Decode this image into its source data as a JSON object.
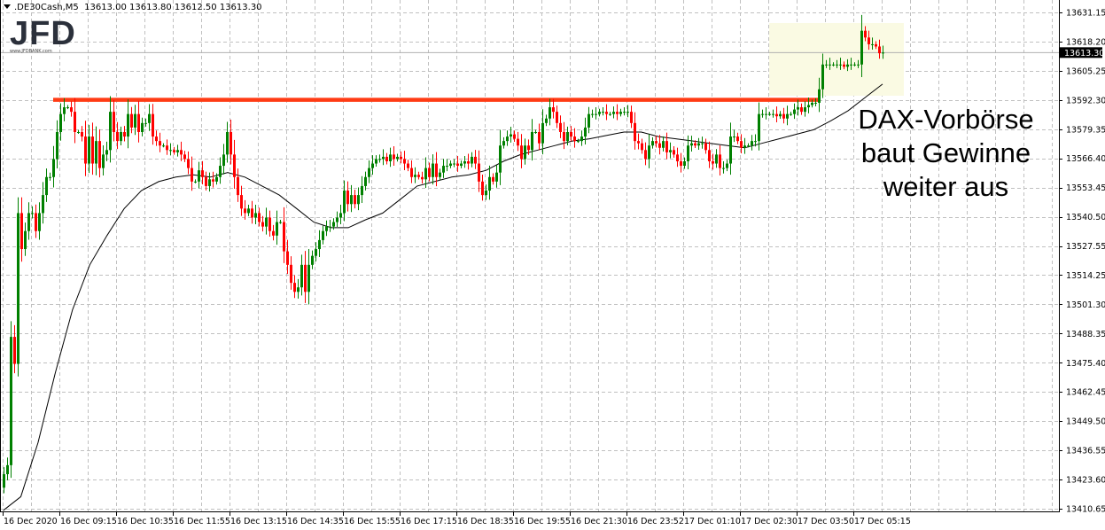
{
  "header": {
    "symbol": ".DE30Cash,M5",
    "open": "13613.00",
    "high": "13613.80",
    "low": "13612.50",
    "close": "13613.30"
  },
  "logo": {
    "text": "JFD",
    "url_text": "www.JFDBANK.com"
  },
  "annotation": {
    "lines": [
      "DAX-Vorbörse",
      "baut Gewinne",
      "weiter aus"
    ]
  },
  "colors": {
    "up": "#008000",
    "down": "#ff0000",
    "resistance": "#ff3b14",
    "highlight": "#fafae3",
    "ma": "#000000"
  },
  "chart_data": {
    "type": "candlestick",
    "y_axis": {
      "min": 13410.65,
      "max": 13631.15,
      "ticks": [
        "13631.15",
        "13618.20",
        "13605.25",
        "13592.30",
        "13579.35",
        "13566.40",
        "13553.45",
        "13540.50",
        "13527.55",
        "13514.25",
        "13501.30",
        "13488.35",
        "13475.40",
        "13462.45",
        "13449.50",
        "13436.55",
        "13423.60",
        "13410.65"
      ]
    },
    "x_axis": {
      "ticks": [
        "16 Dec 2020",
        "16 Dec 09:15",
        "16 Dec 10:35",
        "16 Dec 11:55",
        "16 Dec 13:15",
        "16 Dec 14:35",
        "16 Dec 15:55",
        "16 Dec 17:15",
        "16 Dec 18:35",
        "16 Dec 19:55",
        "16 Dec 21:30",
        "16 Dec 23:52",
        "17 Dec 01:10",
        "17 Dec 02:30",
        "17 Dec 03:50",
        "17 Dec 05:15"
      ]
    },
    "current_price": "13613.30",
    "resistance_level": 13592.3,
    "first_open": 13420,
    "closes": [
      13426,
      13430,
      13487,
      13475,
      13542,
      13526,
      13534,
      13542,
      13542,
      13534,
      13542,
      13550,
      13558,
      13558,
      13566,
      13578,
      13586,
      13589,
      13589,
      13587,
      13578,
      13578,
      13576,
      13564,
      13576,
      13564,
      13574,
      13562,
      13568,
      13570,
      13587,
      13578,
      13574,
      13578,
      13576,
      13586,
      13580,
      13586,
      13578,
      13582,
      13582,
      13586,
      13576,
      13574,
      13572,
      13572,
      13570,
      13570,
      13569,
      13570,
      13568,
      13566,
      13562,
      13556,
      13556,
      13561,
      13558,
      13554,
      13557,
      13556,
      13558,
      13563,
      13568,
      13578,
      13568,
      13558,
      13550,
      13544,
      13542,
      13544,
      13540,
      13542,
      13538,
      13536,
      13540,
      13534,
      13532,
      13538,
      13538,
      13525,
      13519,
      13511,
      13507,
      13509,
      13519,
      13507,
      13519,
      13523,
      13526,
      13530,
      13534,
      13536,
      13536,
      13538,
      13540,
      13542,
      13552,
      13546,
      13550,
      13546,
      13550,
      13554,
      13558,
      13562,
      13564,
      13566,
      13566,
      13567,
      13565,
      13568,
      13566,
      13567,
      13566,
      13564,
      13562,
      13558,
      13559,
      13558,
      13557,
      13562,
      13558,
      13564,
      13558,
      13560,
      13563,
      13563,
      13564,
      13564,
      13563,
      13564,
      13565,
      13564,
      13567,
      13564,
      13556,
      13550,
      13552,
      13558,
      13556,
      13560,
      13572,
      13574,
      13576,
      13577,
      13575,
      13572,
      13566,
      13572,
      13570,
      13578,
      13578,
      13573,
      13582,
      13584,
      13589,
      13587,
      13582,
      13578,
      13574,
      13578,
      13576,
      13574,
      13574,
      13576,
      13580,
      13586,
      13586,
      13586,
      13587,
      13587,
      13586,
      13586,
      13587,
      13586,
      13587,
      13587,
      13587,
      13582,
      13574,
      13573,
      13570,
      13566,
      13572,
      13574,
      13573,
      13571,
      13574,
      13569,
      13570,
      13568,
      13565,
      13563,
      13565,
      13572,
      13573,
      13572,
      13573,
      13573,
      13570,
      13565,
      13564,
      13568,
      13562,
      13562,
      13564,
      13576,
      13576,
      13574,
      13571,
      13572,
      13572,
      13574,
      13574,
      13586,
      13586,
      13586,
      13586,
      13586,
      13585,
      13586,
      13584,
      13586,
      13586,
      13588,
      13589,
      13587,
      13589,
      13590,
      13591,
      13591,
      13597,
      13608,
      13608,
      13608,
      13608,
      13608,
      13608,
      13607,
      13608,
      13608,
      13608,
      13608,
      13623,
      13620,
      13617,
      13617,
      13616,
      13613,
      13613.3
    ],
    "moving_average": [
      13410,
      13416,
      13440,
      13471,
      13499,
      13519,
      13532,
      13544,
      13552,
      13556,
      13558,
      13559,
      13558,
      13560,
      13558,
      13554,
      13550,
      13544,
      13538,
      13535.5,
      13535.5,
      13539,
      13542,
      13548,
      13554,
      13556,
      13558,
      13559,
      13561,
      13565,
      13568,
      13570,
      13572,
      13574,
      13575,
      13576.5,
      13578,
      13578,
      13576,
      13575,
      13574,
      13573,
      13572,
      13571,
      13573,
      13575,
      13577,
      13579,
      13583,
      13587.5,
      13593.4,
      13599.3
    ]
  }
}
